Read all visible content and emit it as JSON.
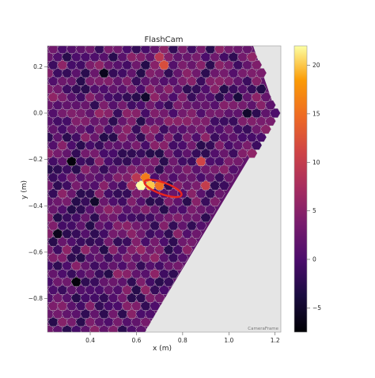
{
  "chart_data": {
    "type": "heatmap",
    "title": "FlashCam",
    "xlabel": "x  (m)",
    "ylabel": "y  (m)",
    "xlim": [
      0.215,
      1.225
    ],
    "ylim": [
      -0.945,
      0.29
    ],
    "x_ticks": [
      0.4,
      0.6,
      0.8,
      1.0,
      1.2
    ],
    "x_tick_labels": [
      "0.4",
      "0.6",
      "0.8",
      "1.0",
      "1.2"
    ],
    "y_ticks": [
      0.2,
      0.0,
      -0.2,
      -0.4,
      -0.6,
      -0.8
    ],
    "y_tick_labels": [
      "0.2",
      "0.0",
      "−0.2",
      "−0.4",
      "−0.6",
      "−0.8"
    ],
    "colorbar": {
      "colormap": "inferno",
      "min": -7.5,
      "max": 22,
      "ticks": [
        -5,
        0,
        5,
        10,
        15,
        20
      ],
      "tick_labels": [
        "−5",
        "0",
        "5",
        "10",
        "15",
        "20"
      ]
    },
    "camera_frame_label": "CameraFrame",
    "pixel_spacing_m": 0.04,
    "camera_boundary": [
      [
        0.215,
        0.29
      ],
      [
        1.105,
        0.29
      ],
      [
        1.205,
        0.0
      ],
      [
        0.635,
        -0.945
      ],
      [
        0.215,
        -0.945
      ]
    ],
    "typical_value": 2,
    "hillas_ellipse": {
      "center_x": 0.715,
      "center_y": -0.325,
      "length": 0.085,
      "width": 0.025,
      "psi_deg": -20,
      "color": "#e8251f"
    },
    "bright_pixels": [
      {
        "x": 0.62,
        "y": -0.3,
        "value": 22
      },
      {
        "x": 0.66,
        "y": -0.3,
        "value": 20
      },
      {
        "x": 0.64,
        "y": -0.27,
        "value": 16
      },
      {
        "x": 0.7,
        "y": -0.3,
        "value": 15
      },
      {
        "x": 0.68,
        "y": -0.33,
        "value": 14
      },
      {
        "x": 0.72,
        "y": -0.33,
        "value": 12
      },
      {
        "x": 0.76,
        "y": -0.33,
        "value": 14
      },
      {
        "x": 0.74,
        "y": -0.36,
        "value": 11
      },
      {
        "x": 0.78,
        "y": -0.36,
        "value": 10
      },
      {
        "x": 0.8,
        "y": -0.33,
        "value": 9
      },
      {
        "x": 0.6,
        "y": -0.27,
        "value": 9
      },
      {
        "x": 0.84,
        "y": -0.39,
        "value": 10
      },
      {
        "x": 0.58,
        "y": -0.3,
        "value": 7
      },
      {
        "x": 0.82,
        "y": -0.36,
        "value": 7
      },
      {
        "x": 0.88,
        "y": -0.39,
        "value": 8
      },
      {
        "x": 0.9,
        "y": -0.3,
        "value": 10
      },
      {
        "x": 0.94,
        "y": -0.42,
        "value": 9
      },
      {
        "x": 0.88,
        "y": -0.21,
        "value": 11
      },
      {
        "x": 0.44,
        "y": 0.0,
        "value": 6
      },
      {
        "x": 0.22,
        "y": 0.09,
        "value": 12
      },
      {
        "x": 0.58,
        "y": -0.06,
        "value": 13
      },
      {
        "x": 0.54,
        "y": -0.15,
        "value": 10
      },
      {
        "x": 0.72,
        "y": 0.21,
        "value": 12
      },
      {
        "x": 0.76,
        "y": 0.24,
        "value": 10
      },
      {
        "x": 0.7,
        "y": 0.24,
        "value": 9
      },
      {
        "x": 0.88,
        "y": 0.09,
        "value": 8
      },
      {
        "x": 1.14,
        "y": 0.06,
        "value": 8
      },
      {
        "x": 1.14,
        "y": 0.09,
        "value": 7
      },
      {
        "x": 0.28,
        "y": 0.24,
        "value": 7
      },
      {
        "x": 0.82,
        "y": -0.06,
        "value": 7
      },
      {
        "x": 0.3,
        "y": -0.36,
        "value": 7
      },
      {
        "x": 0.84,
        "y": -0.51,
        "value": 7
      },
      {
        "x": 0.28,
        "y": -0.66,
        "value": 7
      },
      {
        "x": 0.62,
        "y": -0.6,
        "value": 6
      },
      {
        "x": 0.32,
        "y": -0.21,
        "value": -7
      },
      {
        "x": 0.34,
        "y": -0.72,
        "value": -7
      },
      {
        "x": 0.56,
        "y": -0.57,
        "value": -6
      },
      {
        "x": 0.46,
        "y": 0.18,
        "value": -6
      },
      {
        "x": 0.26,
        "y": -0.51,
        "value": -6
      },
      {
        "x": 0.42,
        "y": -0.39,
        "value": -5
      },
      {
        "x": 1.08,
        "y": 0.0,
        "value": -5
      },
      {
        "x": 1.04,
        "y": 0.06,
        "value": -4
      },
      {
        "x": 0.64,
        "y": 0.06,
        "value": -5
      },
      {
        "x": 0.76,
        "y": -0.09,
        "value": -4
      },
      {
        "x": 0.38,
        "y": -0.81,
        "value": -4
      },
      {
        "x": 0.48,
        "y": -0.93,
        "value": -4
      },
      {
        "x": 0.36,
        "y": -0.09,
        "value": -3
      }
    ]
  }
}
